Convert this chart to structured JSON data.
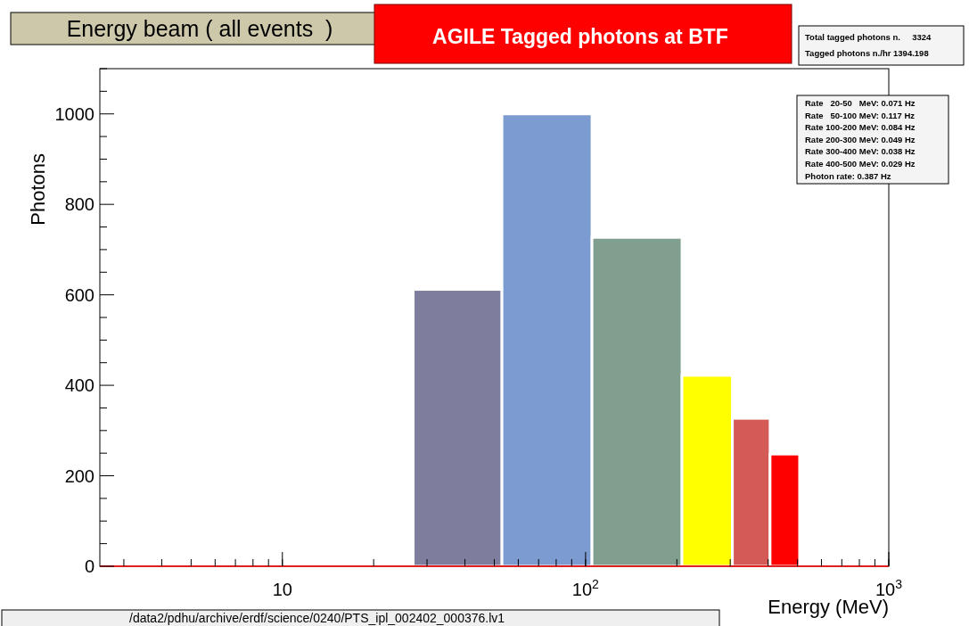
{
  "chart_data": {
    "type": "histogram",
    "title": "Energy beam ( all events  )",
    "subtitle": "AGILE Tagged photons at BTF",
    "xlabel": "Energy (MeV)",
    "ylabel": "Photons",
    "bins": [
      27,
      53,
      105,
      208,
      305,
      406,
      508
    ],
    "values": [
      612,
      1000,
      727,
      422,
      327,
      248
    ],
    "colors": [
      "#7e7d9d",
      "#7c9bd0",
      "#819f8e",
      "#ffff00",
      "#d45a55",
      "#ff0000"
    ],
    "log": "x",
    "xlim": [
      2.5,
      1000
    ],
    "ylim": [
      0,
      1100
    ],
    "xticks": [
      10,
      {
        "value": 100,
        "label": "10$^{2}$"
      },
      {
        "value": 1000,
        "label": "10$^{3}$"
      }
    ],
    "yticks": [
      0,
      200,
      400,
      600,
      800,
      1000
    ],
    "annotations": [
      "Total tagged photons n.     3324",
      "Tagged photons n./hr 1394.198",
      "Rate   20-50   MeV: 0.071 Hz",
      "Rate   50-100 MeV: 0.117 Hz",
      "Rate 100-200 MeV: 0.084 Hz",
      "Rate 200-300 MeV: 0.049 Hz",
      "Rate 300-400 MeV: 0.038 Hz",
      "Rate 400-500 MeV: 0.029 Hz",
      "Photon rate: 0.387 Hz",
      "/data2/pdhu/archive/erdf/science/0240/PTS_ipl_002402_000376.lv1"
    ]
  }
}
